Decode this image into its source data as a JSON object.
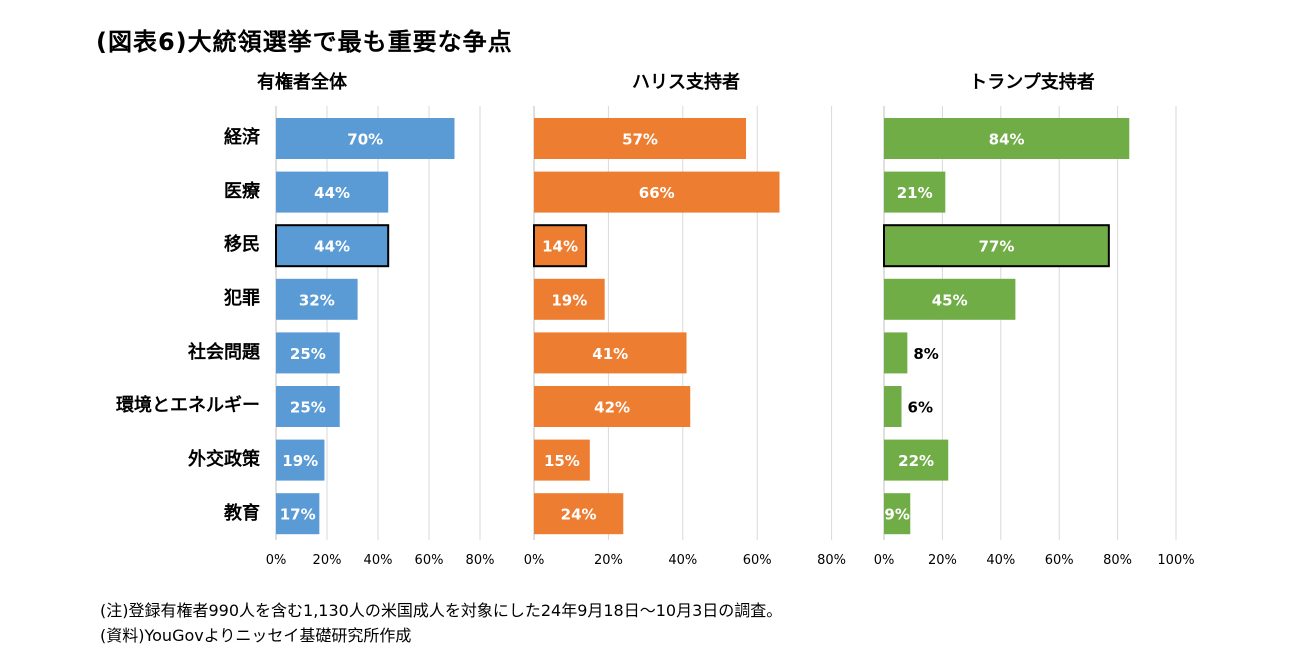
{
  "title": "(図表6)大統領選挙で最も重要な争点",
  "notes": [
    "(注)登録有権者990人を含む1,130人の米国成人を対象にした24年9月18日〜10月3日の調査。",
    "(資料)YouGovよりニッセイ基礎研究所作成"
  ],
  "colors": {
    "all": "#5b9bd5",
    "harris": "#ed7d31",
    "trump": "#70ad47",
    "grid": "#d9d9d9"
  },
  "chart_data": {
    "type": "bar",
    "orientation": "horizontal",
    "categories": [
      "経済",
      "医療",
      "移民",
      "犯罪",
      "社会問題",
      "環境とエネルギー",
      "外交政策",
      "教育"
    ],
    "highlighted_category": "移民",
    "grid": true,
    "series": [
      {
        "name": "有権者全体",
        "values": [
          70,
          44,
          44,
          32,
          25,
          25,
          19,
          17
        ],
        "labels": [
          "70%",
          "44%",
          "44%",
          "32%",
          "25%",
          "25%",
          "19%",
          "17%"
        ],
        "xlim": [
          0,
          80
        ],
        "ticks": [
          "0%",
          "20%",
          "40%",
          "60%",
          "80%"
        ]
      },
      {
        "name": "ハリス支持者",
        "values": [
          57,
          66,
          14,
          19,
          41,
          42,
          15,
          24
        ],
        "labels": [
          "57%",
          "66%",
          "14%",
          "19%",
          "41%",
          "42%",
          "15%",
          "24%"
        ],
        "xlim": [
          0,
          80
        ],
        "ticks": [
          "0%",
          "20%",
          "40%",
          "60%",
          "80%"
        ]
      },
      {
        "name": "トランプ支持者",
        "values": [
          84,
          21,
          77,
          45,
          8,
          6,
          22,
          9
        ],
        "labels": [
          "84%",
          "21%",
          "77%",
          "45%",
          "8%",
          "6%",
          "22%",
          "9%"
        ],
        "xlim": [
          0,
          100
        ],
        "ticks": [
          "0%",
          "20%",
          "40%",
          "60%",
          "80%",
          "100%"
        ]
      }
    ]
  }
}
